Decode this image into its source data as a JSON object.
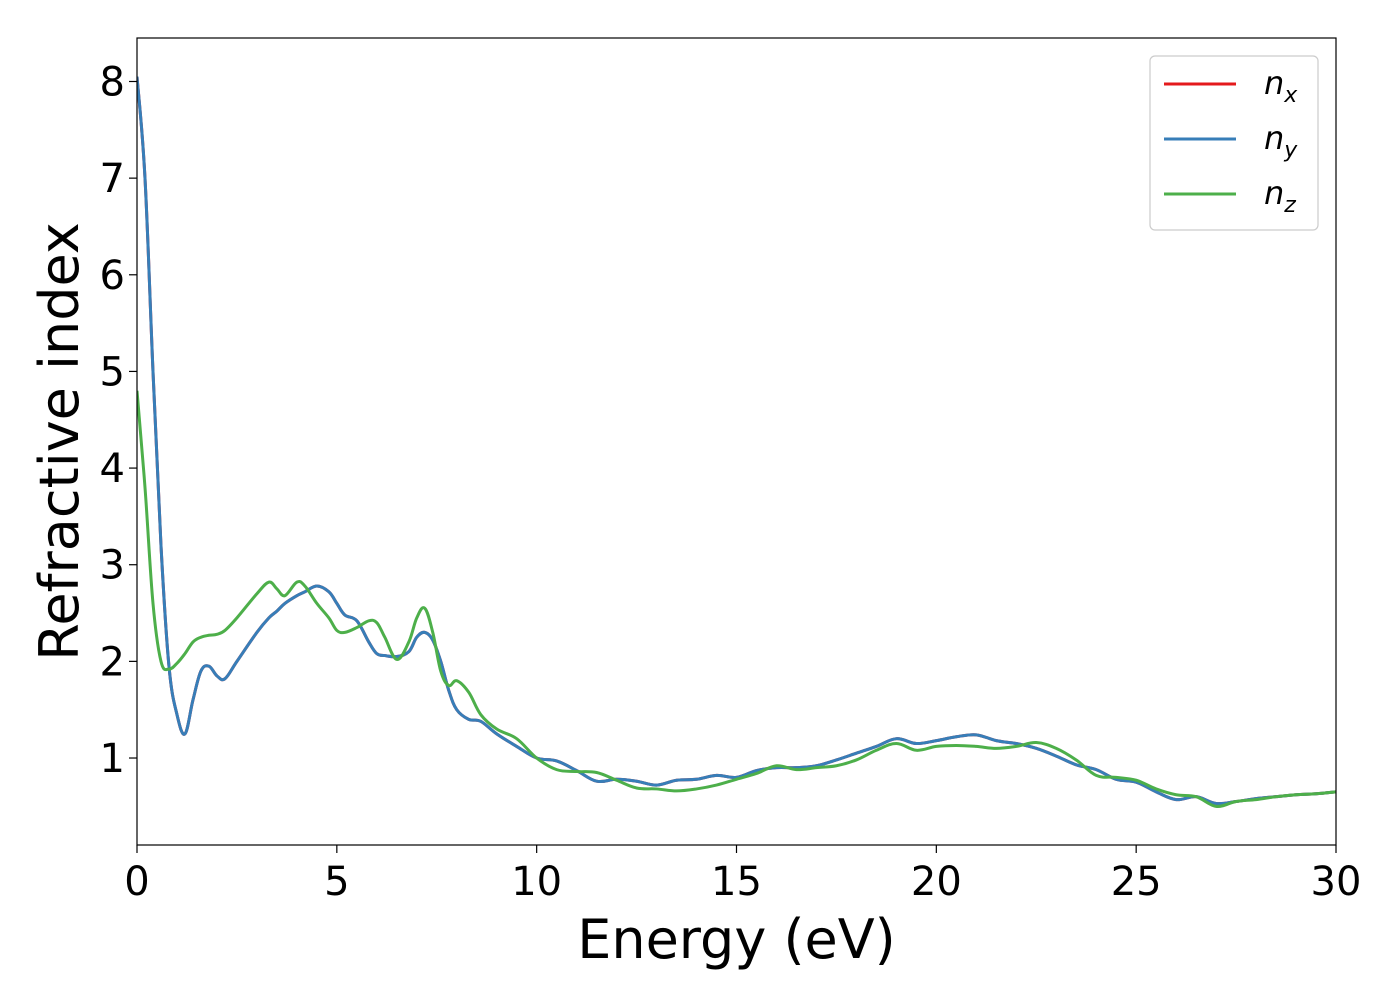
{
  "chart_data": {
    "type": "line",
    "xlabel": "Energy (eV)",
    "ylabel": "Refractive index",
    "xlim": [
      0,
      30
    ],
    "ylim": [
      0.1,
      8.45
    ],
    "xticks": [
      0,
      5,
      10,
      15,
      20,
      25,
      30
    ],
    "yticks": [
      1,
      2,
      3,
      4,
      5,
      6,
      7,
      8
    ],
    "grid": false,
    "legend_position": "top-right",
    "x": [
      0,
      0.2,
      0.4,
      0.6,
      0.8,
      1.0,
      1.2,
      1.4,
      1.6,
      1.8,
      2.0,
      2.2,
      2.5,
      3.0,
      3.3,
      3.5,
      3.7,
      4.0,
      4.2,
      4.5,
      4.8,
      5.0,
      5.2,
      5.5,
      5.8,
      6.0,
      6.2,
      6.5,
      6.8,
      7.0,
      7.2,
      7.4,
      7.6,
      7.8,
      8.0,
      8.3,
      8.6,
      9.0,
      9.5,
      10.0,
      10.5,
      11.0,
      11.5,
      12.0,
      12.5,
      13.0,
      13.5,
      14.0,
      14.5,
      15.0,
      15.5,
      16.0,
      16.5,
      17.0,
      17.5,
      18.0,
      18.5,
      19.0,
      19.5,
      20.0,
      20.5,
      21.0,
      21.5,
      22.0,
      22.5,
      23.0,
      23.5,
      24.0,
      24.5,
      25.0,
      25.5,
      26.0,
      26.5,
      27.0,
      27.5,
      28.0,
      28.5,
      29.0,
      29.5,
      30.0
    ],
    "series": [
      {
        "name": "n_x",
        "label_base": "n",
        "label_sub": "x",
        "color": "#e41a1c",
        "values": [
          8.05,
          7.0,
          5.0,
          3.2,
          1.95,
          1.45,
          1.25,
          1.6,
          1.9,
          1.95,
          1.85,
          1.82,
          2.0,
          2.3,
          2.45,
          2.52,
          2.6,
          2.68,
          2.72,
          2.78,
          2.72,
          2.6,
          2.48,
          2.42,
          2.2,
          2.08,
          2.06,
          2.05,
          2.1,
          2.25,
          2.3,
          2.22,
          2.0,
          1.7,
          1.5,
          1.4,
          1.38,
          1.25,
          1.12,
          1.0,
          0.97,
          0.87,
          0.76,
          0.78,
          0.76,
          0.72,
          0.77,
          0.78,
          0.82,
          0.8,
          0.87,
          0.9,
          0.9,
          0.92,
          0.98,
          1.05,
          1.12,
          1.2,
          1.15,
          1.18,
          1.22,
          1.24,
          1.18,
          1.15,
          1.1,
          1.02,
          0.93,
          0.88,
          0.78,
          0.75,
          0.65,
          0.57,
          0.6,
          0.53,
          0.55,
          0.58,
          0.6,
          0.62,
          0.63,
          0.65
        ]
      },
      {
        "name": "n_y",
        "label_base": "n",
        "label_sub": "y",
        "color": "#377eb8",
        "values": [
          8.05,
          7.0,
          5.0,
          3.2,
          1.95,
          1.45,
          1.25,
          1.6,
          1.9,
          1.95,
          1.85,
          1.82,
          2.0,
          2.3,
          2.45,
          2.52,
          2.6,
          2.68,
          2.72,
          2.78,
          2.72,
          2.6,
          2.48,
          2.42,
          2.2,
          2.08,
          2.06,
          2.05,
          2.1,
          2.25,
          2.3,
          2.22,
          2.0,
          1.7,
          1.5,
          1.4,
          1.38,
          1.25,
          1.12,
          1.0,
          0.97,
          0.87,
          0.76,
          0.78,
          0.76,
          0.72,
          0.77,
          0.78,
          0.82,
          0.8,
          0.87,
          0.9,
          0.9,
          0.92,
          0.98,
          1.05,
          1.12,
          1.2,
          1.15,
          1.18,
          1.22,
          1.24,
          1.18,
          1.15,
          1.1,
          1.02,
          0.93,
          0.88,
          0.78,
          0.75,
          0.65,
          0.57,
          0.6,
          0.53,
          0.55,
          0.58,
          0.6,
          0.62,
          0.63,
          0.65
        ]
      },
      {
        "name": "n_z",
        "label_base": "n",
        "label_sub": "z",
        "color": "#4daf4a",
        "values": [
          4.8,
          3.8,
          2.6,
          2.0,
          1.92,
          1.98,
          2.08,
          2.2,
          2.25,
          2.27,
          2.28,
          2.32,
          2.45,
          2.7,
          2.82,
          2.75,
          2.68,
          2.82,
          2.78,
          2.6,
          2.45,
          2.32,
          2.3,
          2.35,
          2.42,
          2.4,
          2.25,
          2.02,
          2.2,
          2.45,
          2.55,
          2.3,
          1.9,
          1.75,
          1.8,
          1.68,
          1.45,
          1.3,
          1.2,
          1.0,
          0.88,
          0.86,
          0.85,
          0.77,
          0.69,
          0.68,
          0.66,
          0.68,
          0.72,
          0.78,
          0.84,
          0.92,
          0.88,
          0.9,
          0.92,
          0.98,
          1.08,
          1.15,
          1.08,
          1.12,
          1.13,
          1.12,
          1.1,
          1.12,
          1.16,
          1.1,
          0.98,
          0.82,
          0.8,
          0.77,
          0.68,
          0.62,
          0.6,
          0.5,
          0.55,
          0.57,
          0.6,
          0.62,
          0.63,
          0.65
        ]
      }
    ]
  }
}
